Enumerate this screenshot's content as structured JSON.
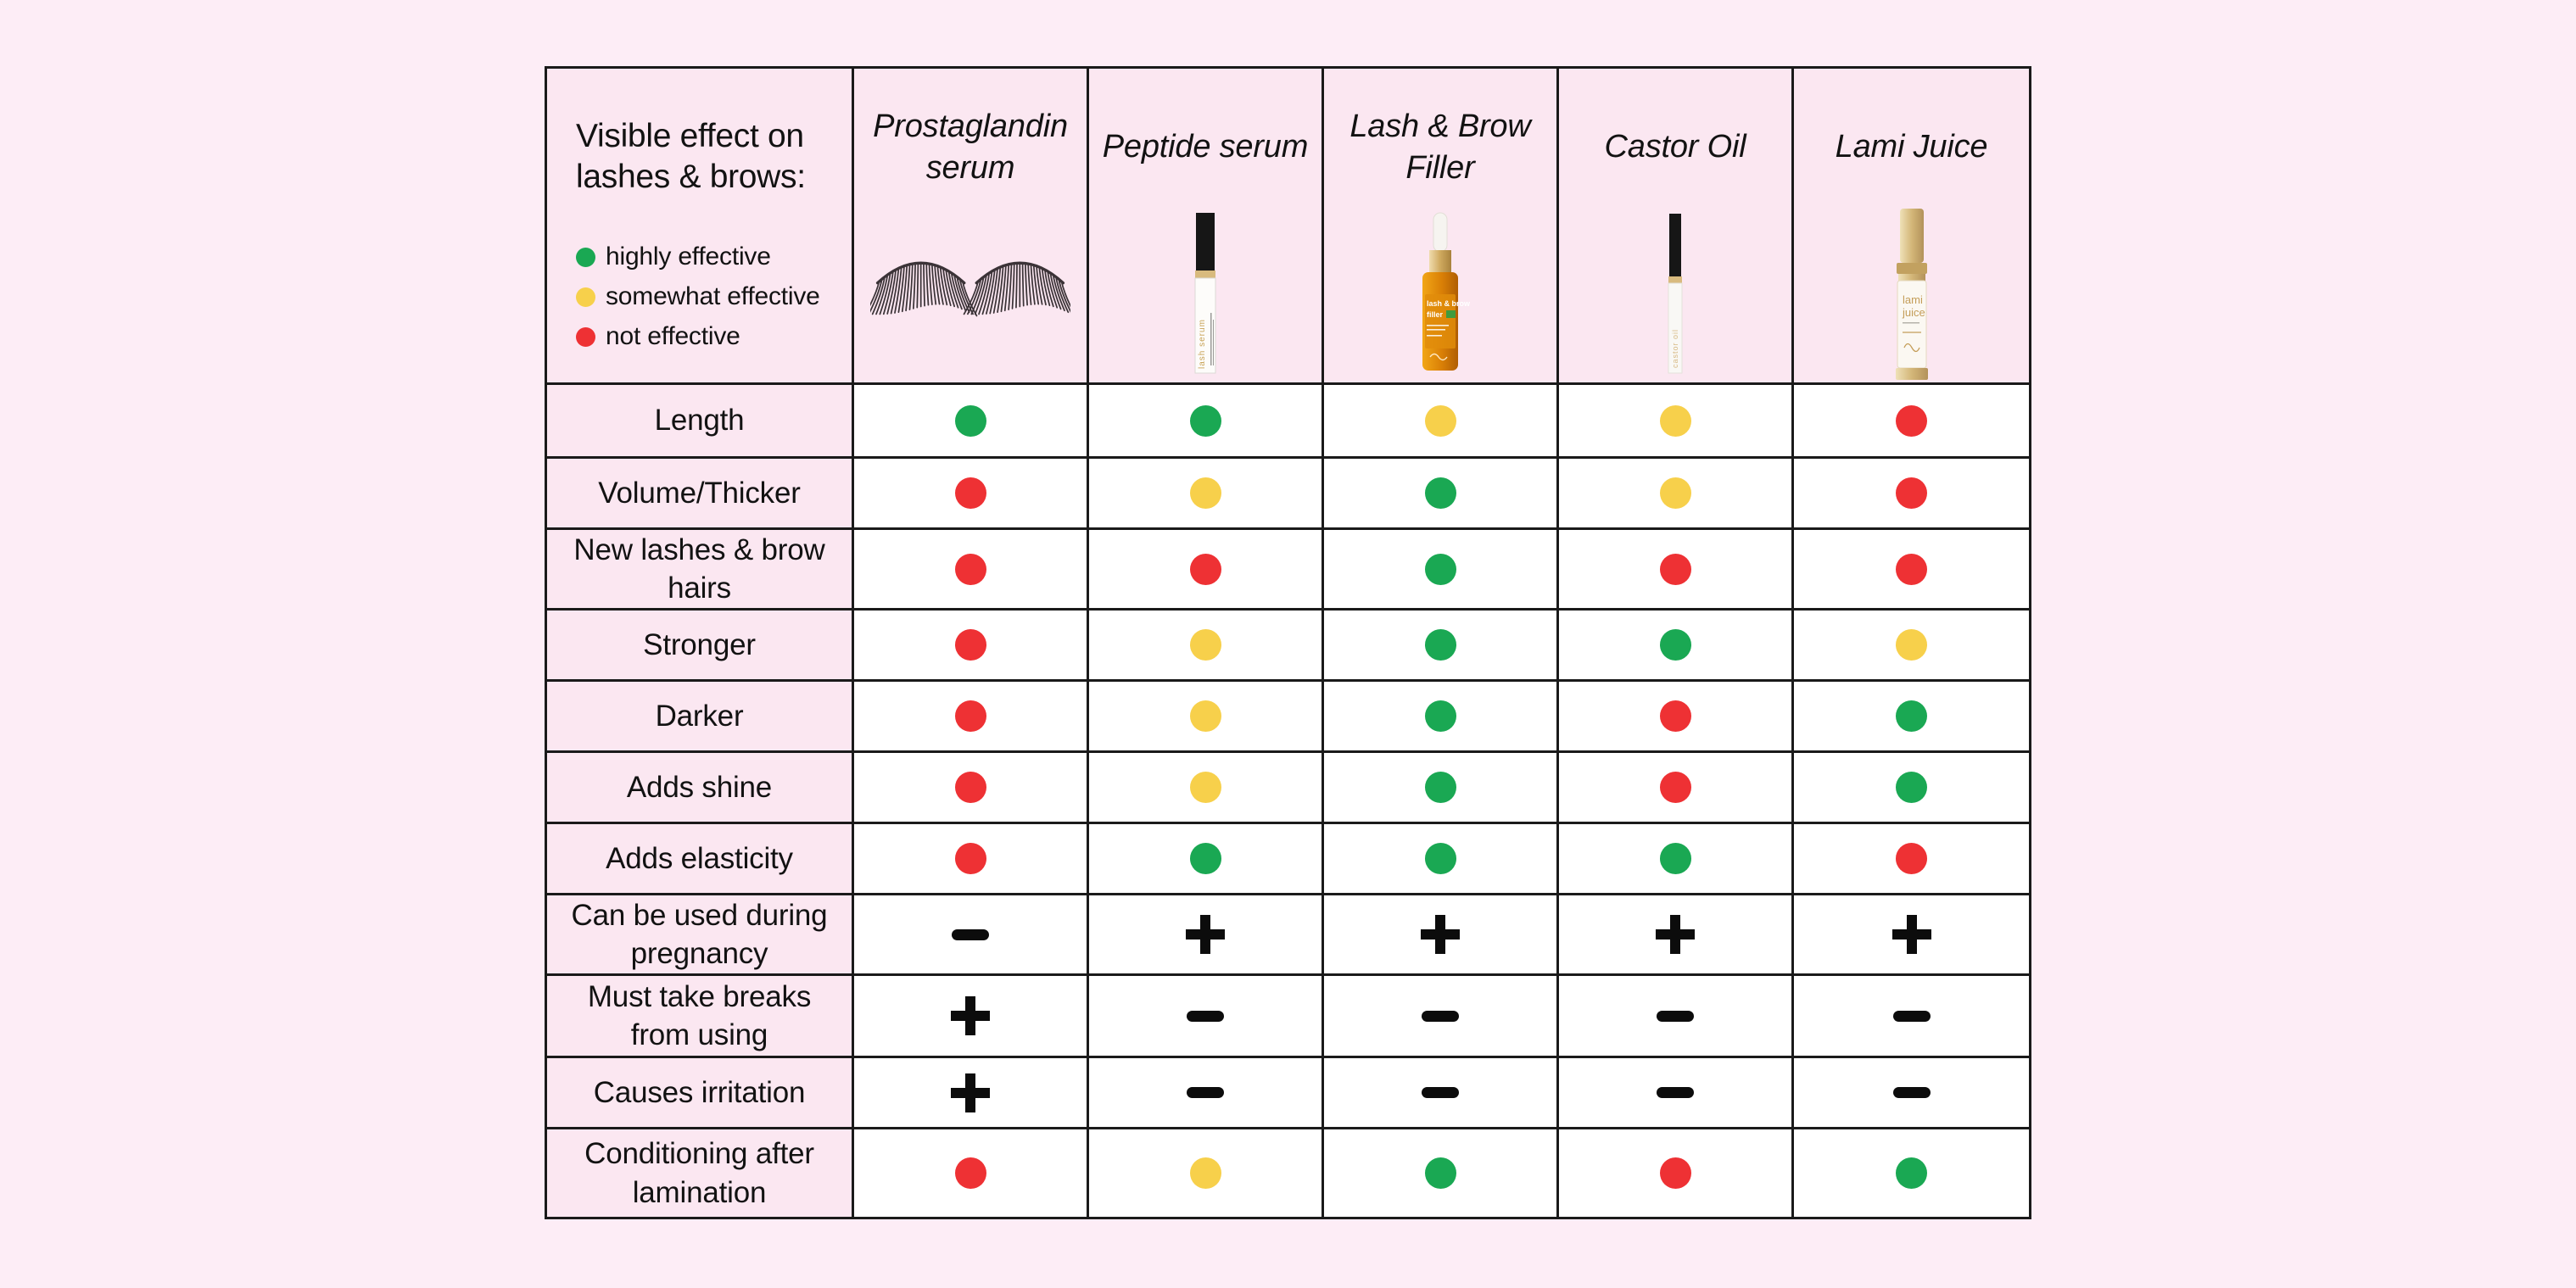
{
  "page": {
    "background": "#fdedf6"
  },
  "colors": {
    "green": "#1aa853",
    "yellow": "#f7d04b",
    "red": "#ee3134",
    "border": "#1a1a1a",
    "cell_pink": "#fbe7f1",
    "cell_white": "#ffffff",
    "symbol_black": "#0c0c0c"
  },
  "chart_data": {
    "type": "table",
    "title": "Visible effect on lashes & brows:",
    "legend": [
      {
        "key": "green",
        "label": "highly effective"
      },
      {
        "key": "yellow",
        "label": "somewhat effective"
      },
      {
        "key": "red",
        "label": "not effective"
      }
    ],
    "columns": [
      {
        "label": "Prostaglandin serum",
        "image": "false-lashes",
        "bottle_text": []
      },
      {
        "label": "Peptide serum",
        "image": "white-tube",
        "bottle_text": [
          "lash serum"
        ]
      },
      {
        "label": "Lash & Brow Filler",
        "image": "amber-dropper",
        "bottle_text": [
          "lash & brow",
          "filler"
        ]
      },
      {
        "label": "Castor Oil",
        "image": "clear-tube",
        "bottle_text": [
          "castor oil"
        ]
      },
      {
        "label": "Lami Juice",
        "image": "gold-pump",
        "bottle_text": [
          "lami",
          "juice"
        ]
      }
    ],
    "rows": [
      {
        "label": "Length",
        "values": [
          "green",
          "green",
          "yellow",
          "yellow",
          "red"
        ]
      },
      {
        "label": "Volume/Thicker",
        "values": [
          "red",
          "yellow",
          "green",
          "yellow",
          "red"
        ]
      },
      {
        "label": "New lashes & brow hairs",
        "values": [
          "red",
          "red",
          "green",
          "red",
          "red"
        ]
      },
      {
        "label": "Stronger",
        "values": [
          "red",
          "yellow",
          "green",
          "green",
          "yellow"
        ]
      },
      {
        "label": "Darker",
        "values": [
          "red",
          "yellow",
          "green",
          "red",
          "green"
        ]
      },
      {
        "label": "Adds shine",
        "values": [
          "red",
          "yellow",
          "green",
          "red",
          "green"
        ]
      },
      {
        "label": "Adds elasticity",
        "values": [
          "red",
          "green",
          "green",
          "green",
          "red"
        ]
      },
      {
        "label": "Can be used during pregnancy",
        "values": [
          "minus",
          "plus",
          "plus",
          "plus",
          "plus"
        ]
      },
      {
        "label": "Must take breaks from using",
        "values": [
          "plus",
          "minus",
          "minus",
          "minus",
          "minus"
        ]
      },
      {
        "label": "Causes irritation",
        "values": [
          "plus",
          "minus",
          "minus",
          "minus",
          "minus"
        ]
      },
      {
        "label": "Conditioning after lamination",
        "values": [
          "red",
          "yellow",
          "green",
          "red",
          "green"
        ]
      }
    ]
  }
}
